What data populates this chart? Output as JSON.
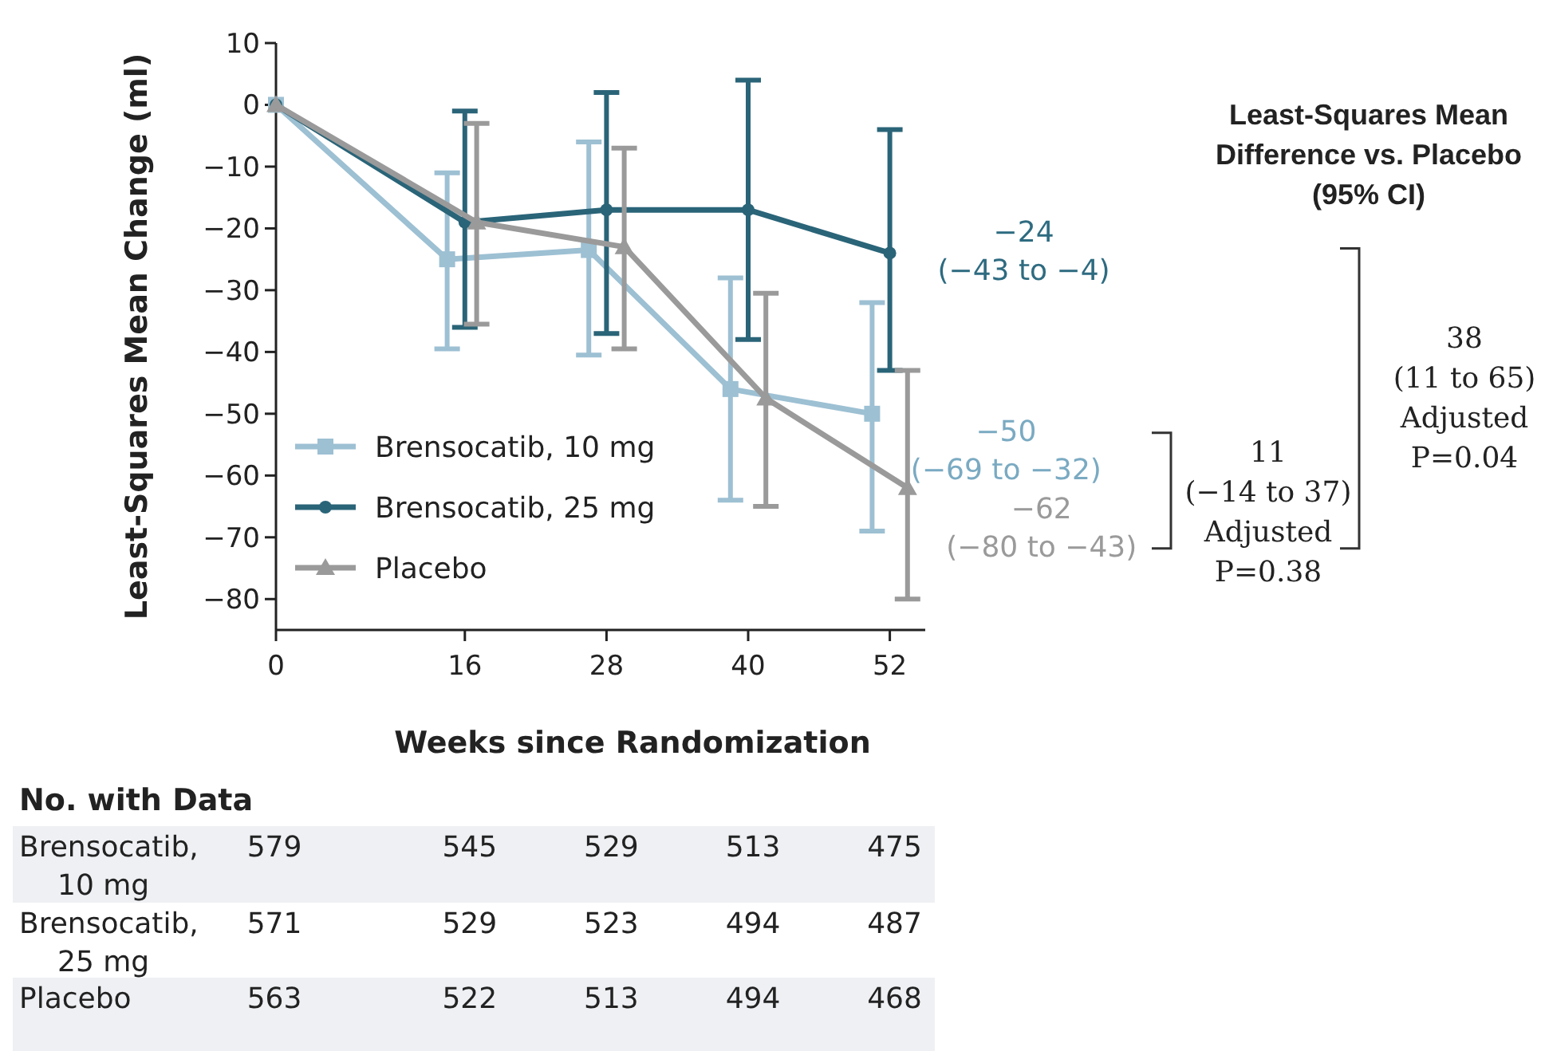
{
  "chart_data": [
    {
      "type": "line",
      "xlabel": "Weeks since Randomization",
      "ylabel": "Least-Squares Mean Change (ml)",
      "xlim": [
        0,
        55
      ],
      "xticks": [
        0,
        16,
        28,
        40,
        52
      ],
      "ylim": [
        -85,
        10
      ],
      "yticks": [
        -80,
        -70,
        -60,
        -50,
        -40,
        -30,
        -20,
        -10,
        0,
        10
      ],
      "grid": false,
      "legend": "bottom left",
      "series": [
        {
          "name": "Brensocatib, 10 mg",
          "color": "#9dc0d3",
          "marker": "square",
          "x": [
            0,
            14.5,
            26.5,
            38.5,
            50.5
          ],
          "values": [
            0,
            -25,
            -23.5,
            -46,
            -50
          ],
          "errors": [
            null,
            [
              -39.5,
              -11
            ],
            [
              -40.5,
              -6
            ],
            [
              -64,
              -28
            ],
            [
              -69,
              -32
            ]
          ]
        },
        {
          "name": "Brensocatib, 25 mg",
          "color": "#2a6478",
          "marker": "circle",
          "x": [
            0,
            16,
            28,
            40,
            52
          ],
          "values": [
            0,
            -19,
            -17,
            -17,
            -24
          ],
          "errors": [
            null,
            [
              -36,
              -1
            ],
            [
              -37,
              2
            ],
            [
              -38,
              4
            ],
            [
              -43,
              -4
            ]
          ]
        },
        {
          "name": "Placebo",
          "color": "#9a9a9a",
          "marker": "triangle",
          "x": [
            0,
            17,
            29.5,
            41.5,
            53.5
          ],
          "values": [
            0,
            -19,
            -23,
            -47.5,
            -62
          ],
          "errors": [
            null,
            [
              -35.5,
              -3
            ],
            [
              -39.5,
              -7
            ],
            [
              -65,
              -30.5
            ],
            [
              -80,
              -43
            ]
          ]
        }
      ],
      "annotations": [
        {
          "text": "−24\n(−43 to −4)",
          "x": 52,
          "y": -24
        },
        {
          "text": "−50\n(−69 to −32)",
          "x": 50.5,
          "y": -50
        },
        {
          "text": "−62\n(−80 to −43)",
          "x": 53.5,
          "y": -62
        },
        "11\n(−14 to 37)\nAdjusted\nP=0.38",
        "38\n(11 to 65)\nAdjusted\nP=0.04",
        "Least-Squares Mean\nDifference vs. Placebo\n(95% CI)"
      ]
    },
    {
      "type": "other",
      "title": "No. with Data",
      "y_categories": [
        "Brensocatib, 10 mg",
        "Brensocatib, 25 mg",
        "Placebo"
      ],
      "cell_labels": [
        [
          "579",
          "545",
          "529",
          "513",
          "475"
        ],
        [
          "571",
          "529",
          "523",
          "494",
          "487"
        ],
        [
          "563",
          "522",
          "513",
          "494",
          "468"
        ]
      ]
    }
  ]
}
